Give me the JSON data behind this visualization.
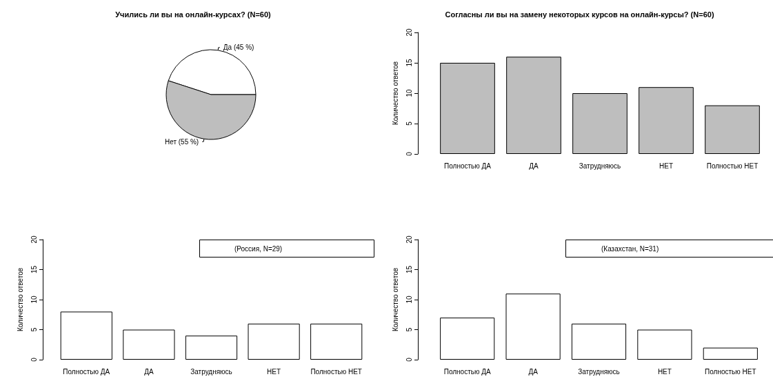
{
  "chart_data": [
    {
      "type": "pie",
      "title": "Учились ли вы на онлайн-курсах? (N=60)",
      "categories": [
        "Да (45 %)",
        "Нет (55 %)"
      ],
      "values": [
        45,
        55
      ],
      "colors": [
        "#ffffff",
        "#bebebe"
      ]
    },
    {
      "type": "bar",
      "title": "Согласны ли вы на замену некоторых курсов на онлайн-курсы? (N=60)",
      "ylabel": "Количество ответов",
      "categories": [
        "Полностью ДА",
        "ДА",
        "Затрудняюсь",
        "НЕТ",
        "Полностью НЕТ"
      ],
      "values": [
        15,
        16,
        10,
        11,
        8
      ],
      "color": "#bebebe",
      "ylim": [
        0,
        20
      ],
      "yticks": [
        0,
        5,
        10,
        15,
        20
      ],
      "grid": false
    },
    {
      "type": "bar",
      "ylabel": "Количество ответов",
      "annotations": [
        "(Россия, N=29)"
      ],
      "categories": [
        "Полностью ДА",
        "ДА",
        "Затрудняюсь",
        "НЕТ",
        "Полностью НЕТ"
      ],
      "values": [
        8,
        5,
        4,
        6,
        6
      ],
      "color": "#ffffff",
      "ylim": [
        0,
        20
      ],
      "yticks": [
        0,
        5,
        10,
        15,
        20
      ],
      "grid": false
    },
    {
      "type": "bar",
      "ylabel": "Количество ответов",
      "annotations": [
        "(Казахстан, N=31)"
      ],
      "categories": [
        "Полностью ДА",
        "ДА",
        "Затрудняюсь",
        "НЕТ",
        "Полностью НЕТ"
      ],
      "values": [
        7,
        11,
        6,
        5,
        2
      ],
      "color": "#ffffff",
      "ylim": [
        0,
        20
      ],
      "yticks": [
        0,
        5,
        10,
        15,
        20
      ],
      "grid": false
    }
  ]
}
